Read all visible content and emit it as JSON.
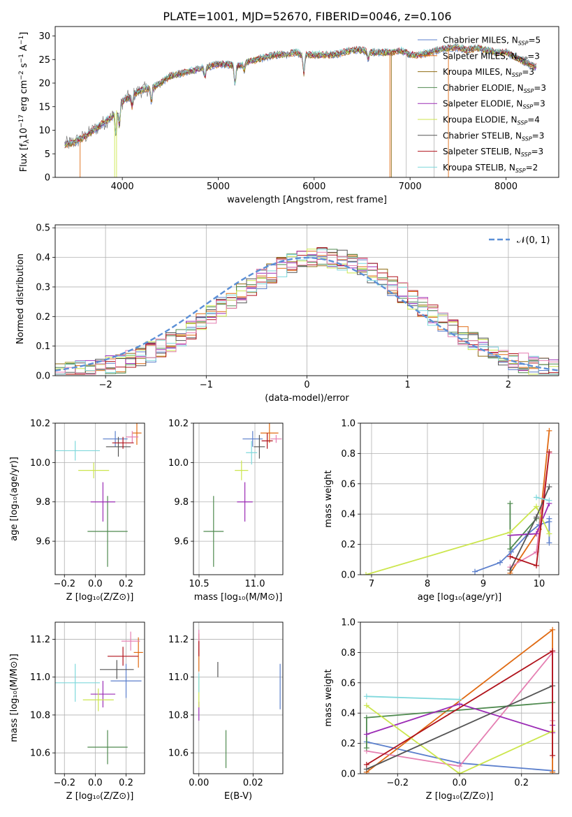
{
  "figure": {
    "title": "PLATE=1001, MJD=52670, FIBERID=0046, z=0.106"
  },
  "colors": {
    "Chabrier MILES": "#5b7fcc",
    "Salpeter MILES": "#e06a12",
    "Kroupa MILES": "#8f6b12",
    "Chabrier ELODIE": "#4f8a4f",
    "Salpeter ELODIE": "#9b2bb5",
    "Kroupa ELODIE": "#cce64d",
    "Chabrier STELIB": "#555555",
    "Salpeter STELIB": "#b0121b",
    "Kroupa STELIB": "#7fd8dc",
    "pink": "#e57fb2",
    "gaussian": "#5b8fd6",
    "grid": "#b0b0b0"
  },
  "chart_data": [
    {
      "id": "spectrum",
      "type": "line",
      "title": "PLATE=1001, MJD=52670, FIBERID=0046, z=0.106",
      "xlabel": "wavelength [Angstrom, rest frame]",
      "ylabel_parts": [
        "Flux [f",
        "λ",
        "10",
        "−17",
        " erg cm",
        "−2",
        " s",
        "−1",
        " A",
        "−1",
        "]"
      ],
      "xlim": [
        3300,
        8550
      ],
      "ylim": [
        0,
        32
      ],
      "xticks": [
        "4000",
        "5000",
        "6000",
        "7000",
        "8000"
      ],
      "yticks": [
        "0",
        "5",
        "10",
        "15",
        "20",
        "25",
        "30"
      ],
      "legend": [
        {
          "name": "Chabrier MILES",
          "nssp": "5"
        },
        {
          "name": "Salpeter MILES",
          "nssp": "3"
        },
        {
          "name": "Kroupa MILES",
          "nssp": "3"
        },
        {
          "name": "Chabrier ELODIE",
          "nssp": "3"
        },
        {
          "name": "Salpeter ELODIE",
          "nssp": "3"
        },
        {
          "name": "Kroupa ELODIE",
          "nssp": "4"
        },
        {
          "name": "Chabrier STELIB",
          "nssp": "3"
        },
        {
          "name": "Salpeter STELIB",
          "nssp": "3"
        },
        {
          "name": "Kroupa STELIB",
          "nssp": "2"
        }
      ],
      "legend_subscript": "SSP",
      "legend_prefix": "N",
      "legend_placement": "upper-right",
      "continuum": {
        "x": [
          3400,
          3500,
          3600,
          3700,
          3800,
          3900,
          4000,
          4100,
          4200,
          4300,
          4400,
          4500,
          4600,
          4700,
          4800,
          4900,
          5000,
          5100,
          5200,
          5300,
          5400,
          5500,
          5600,
          5700,
          5800,
          5900,
          6000,
          6100,
          6200,
          6300,
          6400,
          6500,
          6600,
          6700,
          6800,
          6900,
          7000,
          7100,
          7200,
          7300,
          7400,
          7500,
          7600,
          7700,
          7800,
          7900,
          8000,
          8100,
          8200,
          8300
        ],
        "y": [
          7,
          7.5,
          8.5,
          10,
          11.5,
          13,
          16,
          17.5,
          18.5,
          19,
          20,
          21.5,
          22,
          22.5,
          23,
          23.5,
          24,
          24,
          23.5,
          24.5,
          25,
          25.5,
          26,
          26,
          26.5,
          26,
          26,
          26,
          26,
          26.5,
          27,
          27,
          26.5,
          26.5,
          26.5,
          27,
          26,
          26,
          26.5,
          27,
          27.5,
          27.5,
          27,
          27.5,
          27,
          26.5,
          26.5,
          25.5,
          24.5,
          23.5
        ]
      },
      "absorption_lines": [
        {
          "x": 3934,
          "depth": 5
        },
        {
          "x": 3969,
          "depth": 4
        },
        {
          "x": 4102,
          "depth": 2.5
        },
        {
          "x": 4304,
          "depth": 3
        },
        {
          "x": 4861,
          "depth": 2
        },
        {
          "x": 5175,
          "depth": 4
        },
        {
          "x": 5270,
          "depth": 1.5
        },
        {
          "x": 5892,
          "depth": 4
        },
        {
          "x": 6563,
          "depth": 1.5
        }
      ],
      "dropouts": [
        {
          "x": 3560,
          "color": "#e06a12"
        },
        {
          "x": 3920,
          "color": "#cce64d"
        },
        {
          "x": 3940,
          "color": "#cce64d"
        },
        {
          "x": 6790,
          "color": "#e06a12"
        },
        {
          "x": 6805,
          "color": "#8f6b12"
        },
        {
          "x": 6960,
          "color": "#bbbbbb"
        },
        {
          "x": 7250,
          "color": "#bbbbbb"
        },
        {
          "x": 7400,
          "color": "#e06a12"
        }
      ]
    },
    {
      "id": "residuals",
      "type": "step-histogram",
      "xlabel": "(data-model)/error",
      "ylabel": "Normed distribution",
      "xlim": [
        -2.5,
        2.5
      ],
      "ylim": [
        0,
        0.51
      ],
      "xticks": [
        -2,
        -1,
        0,
        1,
        2
      ],
      "xtick_labels": [
        "−2",
        "−1",
        "0",
        "1",
        "2"
      ],
      "yticks": [
        0.0,
        0.1,
        0.2,
        0.3,
        0.4,
        0.5
      ],
      "ytick_labels": [
        "0.0",
        "0.1",
        "0.2",
        "0.3",
        "0.4",
        "0.5"
      ],
      "bin_width": 0.1,
      "legend": [
        "𝒩(0, 1)"
      ],
      "legend_placement": "upper-right"
    },
    {
      "id": "age-vs-Z",
      "type": "errorbar",
      "xlabel": "Z [log₁₀(Z/Z⊙)]",
      "ylabel": "age  [log₁₀(age/yr)]",
      "xlim": [
        -0.26,
        0.32
      ],
      "ylim": [
        9.43,
        10.2
      ],
      "xticks": [
        -0.2,
        0.0,
        0.2
      ],
      "xtick_labels": [
        "−0.2",
        "0.0",
        "0.2"
      ],
      "yticks": [
        9.6,
        9.8,
        10.0,
        10.2
      ],
      "ytick_labels": [
        "9.6",
        "9.8",
        "10.0",
        "10.2"
      ],
      "points": [
        {
          "series": "Chabrier MILES",
          "x": 0.13,
          "xerr": 0.08,
          "y": 10.12,
          "yerr": 0.04
        },
        {
          "series": "Salpeter MILES",
          "x": 0.27,
          "xerr": 0.03,
          "y": 10.15,
          "yerr": 0.06
        },
        {
          "series": "pink",
          "x": 0.24,
          "xerr": 0.04,
          "y": 10.13,
          "yerr": 0.03
        },
        {
          "series": "Chabrier ELODIE",
          "x": 0.08,
          "xerr": 0.13,
          "y": 9.65,
          "yerr": 0.18
        },
        {
          "series": "Salpeter ELODIE",
          "x": 0.05,
          "xerr": 0.08,
          "y": 9.8,
          "yerr": 0.1
        },
        {
          "series": "Kroupa ELODIE",
          "x": -0.01,
          "xerr": 0.1,
          "y": 9.96,
          "yerr": 0.04
        },
        {
          "series": "Chabrier STELIB",
          "x": 0.15,
          "xerr": 0.08,
          "y": 10.08,
          "yerr": 0.05
        },
        {
          "series": "Salpeter STELIB",
          "x": 0.18,
          "xerr": 0.07,
          "y": 10.1,
          "yerr": 0.03
        },
        {
          "series": "Kroupa STELIB",
          "x": -0.13,
          "xerr": 0.16,
          "y": 10.06,
          "yerr": 0.05
        }
      ]
    },
    {
      "id": "age-vs-mass",
      "type": "errorbar",
      "xlabel": "mass [log₁₀(M/M⊙)]",
      "ylabel": "",
      "xlim": [
        10.45,
        11.25
      ],
      "ylim": [
        9.43,
        10.2
      ],
      "xticks": [
        10.5,
        11.0
      ],
      "xtick_labels": [
        "10.5",
        "11.0"
      ],
      "yticks": [
        9.6,
        9.8,
        10.0,
        10.2
      ],
      "ytick_labels": [
        "9.6",
        "9.8",
        "10.0",
        "10.2"
      ],
      "points": [
        {
          "series": "Chabrier MILES",
          "x": 10.98,
          "xerr": 0.09,
          "y": 10.12,
          "yerr": 0.04
        },
        {
          "series": "Salpeter MILES",
          "x": 11.13,
          "xerr": 0.08,
          "y": 10.15,
          "yerr": 0.05
        },
        {
          "series": "pink",
          "x": 11.19,
          "xerr": 0.05,
          "y": 10.12,
          "yerr": 0.02
        },
        {
          "series": "Chabrier ELODIE",
          "x": 10.63,
          "xerr": 0.09,
          "y": 9.65,
          "yerr": 0.18
        },
        {
          "series": "Salpeter ELODIE",
          "x": 10.91,
          "xerr": 0.07,
          "y": 9.8,
          "yerr": 0.1
        },
        {
          "series": "Kroupa ELODIE",
          "x": 10.88,
          "xerr": 0.06,
          "y": 9.96,
          "yerr": 0.05
        },
        {
          "series": "Chabrier STELIB",
          "x": 11.04,
          "xerr": 0.05,
          "y": 10.08,
          "yerr": 0.06
        },
        {
          "series": "Salpeter STELIB",
          "x": 11.11,
          "xerr": 0.05,
          "y": 10.11,
          "yerr": 0.04
        },
        {
          "series": "Kroupa STELIB",
          "x": 10.97,
          "xerr": 0.05,
          "y": 10.05,
          "yerr": 0.06
        }
      ]
    },
    {
      "id": "weight-vs-age",
      "type": "line",
      "xlabel": "age  [log₁₀(age/yr)]",
      "ylabel": "mass weight",
      "xlim": [
        6.8,
        10.35
      ],
      "ylim": [
        0,
        1.0
      ],
      "xticks": [
        7,
        8,
        9,
        10
      ],
      "xtick_labels": [
        "7",
        "8",
        "9",
        "10"
      ],
      "yticks": [
        0.0,
        0.2,
        0.4,
        0.6,
        0.8,
        1.0
      ],
      "ytick_labels": [
        "0.0",
        "0.2",
        "0.4",
        "0.6",
        "0.8",
        "1.0"
      ],
      "series": [
        {
          "series": "Chabrier MILES",
          "x": [
            8.85,
            9.3,
            9.5,
            9.8,
            10.0,
            10.18,
            10.18,
            10.18
          ],
          "y": [
            0.02,
            0.08,
            0.15,
            0.27,
            0.33,
            0.35,
            0.37,
            0.21
          ]
        },
        {
          "series": "Salpeter MILES",
          "x": [
            9.48,
            10.0,
            10.18
          ],
          "y": [
            0.01,
            0.3,
            0.95
          ]
        },
        {
          "series": "pink",
          "x": [
            9.48,
            9.95,
            10.18
          ],
          "y": [
            0.05,
            0.15,
            0.8
          ]
        },
        {
          "series": "Chabrier ELODIE",
          "x": [
            9.48,
            9.48,
            9.95
          ],
          "y": [
            0.47,
            0.17,
            0.37
          ]
        },
        {
          "series": "Salpeter ELODIE",
          "x": [
            9.48,
            9.95,
            10.18
          ],
          "y": [
            0.26,
            0.27,
            0.47
          ]
        },
        {
          "series": "Kroupa ELODIE",
          "x": [
            6.9,
            9.48,
            9.95,
            10.18
          ],
          "y": [
            0.0,
            0.28,
            0.45,
            0.27
          ]
        },
        {
          "series": "Chabrier STELIB",
          "x": [
            9.48,
            9.95,
            10.18
          ],
          "y": [
            0.03,
            0.38,
            0.58
          ]
        },
        {
          "series": "Salpeter STELIB",
          "x": [
            9.48,
            9.95,
            10.18
          ],
          "y": [
            0.12,
            0.06,
            0.81
          ]
        },
        {
          "series": "Kroupa STELIB",
          "x": [
            9.95,
            10.18
          ],
          "y": [
            0.51,
            0.49
          ]
        }
      ]
    },
    {
      "id": "mass-vs-Z",
      "type": "errorbar",
      "xlabel": "Z [log₁₀(Z/Z⊙)]",
      "ylabel": "mass [log₁₀(M/M⊙)]",
      "xlim": [
        -0.26,
        0.32
      ],
      "ylim": [
        10.49,
        11.29
      ],
      "xticks": [
        -0.2,
        0.0,
        0.2
      ],
      "xtick_labels": [
        "−0.2",
        "0.0",
        "0.2"
      ],
      "yticks": [
        10.6,
        10.8,
        11.0,
        11.2
      ],
      "ytick_labels": [
        "10.6",
        "10.8",
        "11.0",
        "11.2"
      ],
      "points": [
        {
          "series": "Chabrier MILES",
          "x": 0.2,
          "xerr": 0.1,
          "y": 10.98,
          "yerr": 0.09
        },
        {
          "series": "Salpeter MILES",
          "x": 0.28,
          "xerr": 0.03,
          "y": 11.13,
          "yerr": 0.08
        },
        {
          "series": "pink",
          "x": 0.23,
          "xerr": 0.06,
          "y": 11.19,
          "yerr": 0.05
        },
        {
          "series": "Chabrier ELODIE",
          "x": 0.08,
          "xerr": 0.13,
          "y": 10.63,
          "yerr": 0.09
        },
        {
          "series": "Salpeter ELODIE",
          "x": 0.05,
          "xerr": 0.08,
          "y": 10.91,
          "yerr": 0.07
        },
        {
          "series": "Kroupa ELODIE",
          "x": 0.02,
          "xerr": 0.1,
          "y": 10.88,
          "yerr": 0.06
        },
        {
          "series": "Chabrier STELIB",
          "x": 0.14,
          "xerr": 0.11,
          "y": 11.04,
          "yerr": 0.05
        },
        {
          "series": "Salpeter STELIB",
          "x": 0.18,
          "xerr": 0.1,
          "y": 11.11,
          "yerr": 0.05
        },
        {
          "series": "Kroupa STELIB",
          "x": -0.13,
          "xerr": 0.16,
          "y": 10.97,
          "yerr": 0.1
        }
      ]
    },
    {
      "id": "mass-vs-EBV",
      "type": "errorbar",
      "xlabel": "E(B-V)",
      "ylabel": "",
      "xlim": [
        -0.002,
        0.031
      ],
      "ylim": [
        10.49,
        11.29
      ],
      "xticks": [
        0.0,
        0.02
      ],
      "xtick_labels": [
        "0.00",
        "0.02"
      ],
      "yticks": [
        10.6,
        10.8,
        11.0,
        11.2
      ],
      "ytick_labels": [
        "10.6",
        "10.8",
        "11.0",
        "11.2"
      ],
      "points": [
        {
          "series": "Chabrier MILES",
          "x": 0.03,
          "xerr": 0.0,
          "y": 10.95,
          "yerr": 0.12
        },
        {
          "series": "Salpeter MILES",
          "x": 0.0,
          "xerr": 0.0,
          "y": 11.13,
          "yerr": 0.1
        },
        {
          "series": "pink",
          "x": 0.0,
          "xerr": 0.0,
          "y": 11.2,
          "yerr": 0.05
        },
        {
          "series": "Chabrier ELODIE",
          "x": 0.01,
          "xerr": 0.0,
          "y": 10.62,
          "yerr": 0.1
        },
        {
          "series": "Salpeter ELODIE",
          "x": 0.0,
          "xerr": 0.0,
          "y": 10.82,
          "yerr": 0.05
        },
        {
          "series": "Kroupa ELODIE",
          "x": 0.0,
          "xerr": 0.0,
          "y": 10.92,
          "yerr": 0.08
        },
        {
          "series": "Chabrier STELIB",
          "x": 0.007,
          "xerr": 0.0,
          "y": 11.04,
          "yerr": 0.04
        },
        {
          "series": "Salpeter STELIB",
          "x": 0.0,
          "xerr": 0.0,
          "y": 11.15,
          "yerr": 0.04
        },
        {
          "series": "Kroupa STELIB",
          "x": 0.0,
          "xerr": 0.0,
          "y": 10.97,
          "yerr": 0.05
        }
      ]
    },
    {
      "id": "weight-vs-Z",
      "type": "line",
      "xlabel": "Z [log₁₀(Z/Z⊙)]",
      "ylabel": "mass weight",
      "xlim": [
        -0.32,
        0.32
      ],
      "ylim": [
        0,
        1.0
      ],
      "xticks": [
        -0.2,
        0.0,
        0.2
      ],
      "xtick_labels": [
        "−0.2",
        "0.0",
        "0.2"
      ],
      "yticks": [
        0.0,
        0.2,
        0.4,
        0.6,
        0.8,
        1.0
      ],
      "ytick_labels": [
        "0.0",
        "0.2",
        "0.4",
        "0.6",
        "0.8",
        "1.0"
      ],
      "series": [
        {
          "series": "Chabrier MILES",
          "x": [
            -0.3,
            0.0,
            0.3
          ],
          "y": [
            0.21,
            0.07,
            0.02
          ]
        },
        {
          "series": "Salpeter MILES",
          "x": [
            -0.3,
            0.3,
            0.3
          ],
          "y": [
            0.01,
            0.95,
            0.01
          ]
        },
        {
          "series": "pink",
          "x": [
            -0.3,
            0.0,
            0.3,
            0.3
          ],
          "y": [
            0.15,
            0.05,
            0.8,
            0.35
          ]
        },
        {
          "series": "Chabrier ELODIE",
          "x": [
            -0.3,
            -0.3,
            0.3
          ],
          "y": [
            0.17,
            0.37,
            0.47
          ]
        },
        {
          "series": "Salpeter ELODIE",
          "x": [
            -0.3,
            0.0,
            0.3,
            0.3
          ],
          "y": [
            0.26,
            0.46,
            0.27,
            0.32
          ]
        },
        {
          "series": "Kroupa ELODIE",
          "x": [
            -0.3,
            0.0,
            0.3
          ],
          "y": [
            0.45,
            0.0,
            0.28
          ]
        },
        {
          "series": "Chabrier STELIB",
          "x": [
            -0.3,
            0.3
          ],
          "y": [
            0.03,
            0.58
          ]
        },
        {
          "series": "Salpeter STELIB",
          "x": [
            -0.3,
            0.3,
            0.3
          ],
          "y": [
            0.06,
            0.81,
            0.12
          ]
        },
        {
          "series": "Kroupa STELIB",
          "x": [
            -0.3,
            0.0
          ],
          "y": [
            0.51,
            0.49
          ]
        }
      ]
    }
  ]
}
